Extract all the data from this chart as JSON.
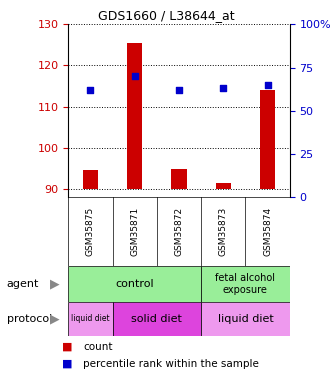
{
  "title": "GDS1660 / L38644_at",
  "samples": [
    "GSM35875",
    "GSM35871",
    "GSM35872",
    "GSM35873",
    "GSM35874"
  ],
  "counts": [
    94.5,
    125.5,
    94.8,
    91.5,
    114.0
  ],
  "count_base": 90,
  "percentile_ranks": [
    62,
    70,
    62,
    63,
    65
  ],
  "ylim_left": [
    88,
    130
  ],
  "ylim_right": [
    0,
    100
  ],
  "yticks_left": [
    90,
    100,
    110,
    120,
    130
  ],
  "yticks_right": [
    0,
    25,
    50,
    75,
    100
  ],
  "ytick_labels_right": [
    "0",
    "25",
    "50",
    "75",
    "100%"
  ],
  "bar_color": "#cc0000",
  "dot_color": "#0000cc",
  "xlabel_color": "#cc0000",
  "ylabel_right_color": "#0000cc",
  "background_sample_row": "#cccccc",
  "agent_green": "#99ee99",
  "protocol_light": "#ee99ee",
  "protocol_dark": "#dd44dd"
}
